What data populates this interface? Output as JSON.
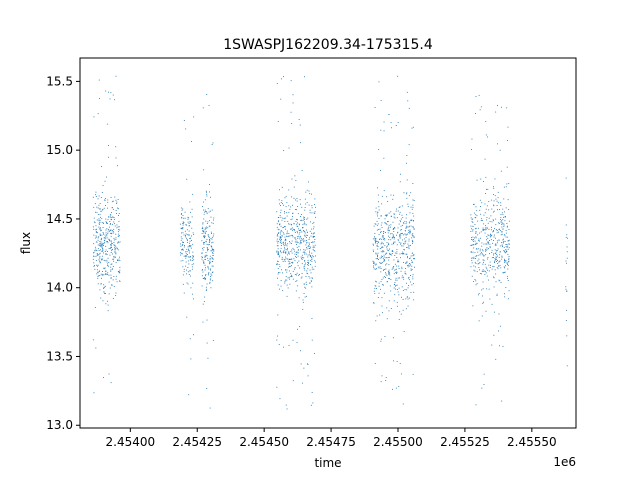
{
  "chart_data": {
    "type": "scatter",
    "title": "1SWASPJ162209.34-175315.4",
    "xlabel": "time",
    "ylabel": "flux",
    "x_offset_label": "1e6",
    "xlim": [
      2453812,
      2455665
    ],
    "ylim": [
      12.98,
      15.67
    ],
    "x_tick_values": [
      2454000,
      2454250,
      2454500,
      2454750,
      2455000,
      2455250,
      2455500
    ],
    "x_tick_labels": [
      "2.45400",
      "2.45425",
      "2.45450",
      "2.45475",
      "2.45500",
      "2.45525",
      "2.45550"
    ],
    "y_tick_values": [
      13.0,
      13.5,
      14.0,
      14.5,
      15.0,
      15.5
    ],
    "y_tick_labels": [
      "13.0",
      "13.5",
      "14.0",
      "14.5",
      "15.0",
      "15.5"
    ],
    "grid": false,
    "legend": "none",
    "point_color": "#1f77b4",
    "series": [
      {
        "clusters": [
          {
            "x_start": 2453860,
            "x_end": 2453960,
            "y_center": 14.33,
            "y_core_sd": 0.17,
            "y_min": 13.1,
            "y_max": 15.55,
            "n": 420
          },
          {
            "x_start": 2454185,
            "x_end": 2454235,
            "y_center": 14.3,
            "y_core_sd": 0.16,
            "y_min": 13.17,
            "y_max": 15.33,
            "n": 160
          },
          {
            "x_start": 2454265,
            "x_end": 2454310,
            "y_center": 14.3,
            "y_core_sd": 0.16,
            "y_min": 13.08,
            "y_max": 15.45,
            "n": 200
          },
          {
            "x_start": 2454545,
            "x_end": 2454690,
            "y_center": 14.33,
            "y_core_sd": 0.18,
            "y_min": 13.1,
            "y_max": 15.55,
            "n": 560
          },
          {
            "x_start": 2454905,
            "x_end": 2455060,
            "y_center": 14.28,
            "y_core_sd": 0.2,
            "y_min": 13.15,
            "y_max": 15.57,
            "n": 580
          },
          {
            "x_start": 2455270,
            "x_end": 2455415,
            "y_center": 14.33,
            "y_core_sd": 0.17,
            "y_min": 13.15,
            "y_max": 15.45,
            "n": 480
          },
          {
            "x_start": 2455625,
            "x_end": 2455632,
            "y_center": 14.2,
            "y_core_sd": 0.3,
            "y_min": 13.2,
            "y_max": 15.05,
            "n": 18
          }
        ]
      }
    ]
  }
}
